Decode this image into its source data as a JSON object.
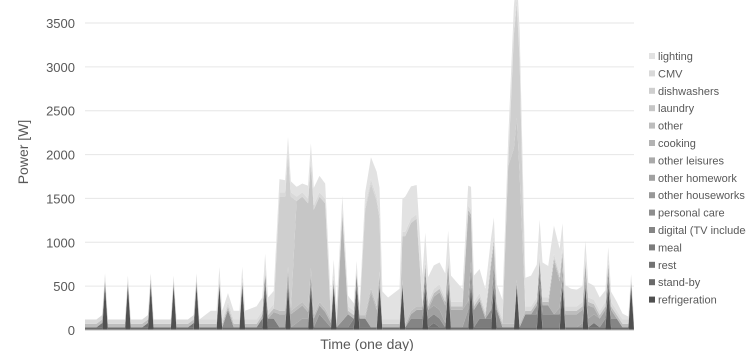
{
  "chart_data": {
    "type": "area",
    "stacked": true,
    "title": "",
    "xlabel": "Time (one day)",
    "ylabel": "Power [W]",
    "ylim": [
      0,
      3500
    ],
    "yticks": [
      0,
      500,
      1000,
      1500,
      2000,
      2500,
      3000,
      3500
    ],
    "grid": true,
    "legend_position": "right",
    "x": {
      "start": 0,
      "end": 96
    },
    "series": [
      {
        "name": "lighting",
        "color": "#e2e2e2",
        "values": [
          [
            20,
            0
          ],
          [
            22,
            100
          ],
          [
            28,
            100
          ],
          [
            30,
            150
          ],
          [
            34,
            150
          ],
          [
            38,
            100
          ],
          [
            40,
            200
          ],
          [
            44,
            150
          ],
          [
            46,
            120
          ],
          [
            48,
            50
          ],
          [
            50,
            250
          ],
          [
            52,
            320
          ],
          [
            53,
            250
          ],
          [
            56,
            400
          ],
          [
            59,
            300
          ],
          [
            62,
            250
          ],
          [
            64,
            300
          ],
          [
            66,
            150
          ],
          [
            68,
            300
          ],
          [
            72,
            200
          ],
          [
            76,
            300
          ],
          [
            80,
            400
          ],
          [
            85,
            200
          ],
          [
            90,
            150
          ],
          [
            93,
            100
          ],
          [
            96,
            0
          ]
        ]
      },
      {
        "name": "CMV",
        "color": "#d9d9d9",
        "values": [
          [
            0,
            50
          ],
          [
            96,
            50
          ]
        ]
      },
      {
        "name": "dishwashers",
        "color": "#cfcfcf",
        "values": [
          [
            33,
            0
          ],
          [
            34,
            1300
          ],
          [
            36,
            1300
          ],
          [
            37,
            0
          ],
          [
            48,
            0
          ],
          [
            49,
            1200
          ],
          [
            51,
            1200
          ],
          [
            52,
            0
          ],
          [
            74,
            0
          ],
          [
            75,
            1300
          ],
          [
            76,
            1300
          ],
          [
            77,
            0
          ]
        ]
      },
      {
        "name": "laundry",
        "color": "#c6c6c6",
        "values": [
          [
            36,
            0
          ],
          [
            37,
            1200
          ],
          [
            42,
            1200
          ],
          [
            43,
            0
          ],
          [
            55,
            0
          ],
          [
            56,
            1000
          ],
          [
            58,
            1000
          ],
          [
            59,
            0
          ],
          [
            73,
            0
          ],
          [
            74,
            1800
          ],
          [
            75,
            2000
          ],
          [
            76,
            1700
          ],
          [
            77,
            0
          ]
        ]
      },
      {
        "name": "other",
        "color": "#bdbdbd",
        "values": [
          [
            0,
            40
          ],
          [
            96,
            40
          ]
        ]
      },
      {
        "name": "cooking",
        "color": "#b3b3b3",
        "values": [
          [
            44,
            0
          ],
          [
            45,
            1200
          ],
          [
            46,
            0
          ],
          [
            49,
            0
          ],
          [
            50,
            400
          ],
          [
            52,
            0
          ],
          [
            66,
            0
          ],
          [
            67,
            1000
          ],
          [
            68,
            0
          ],
          [
            70,
            0
          ],
          [
            71,
            500
          ],
          [
            72,
            0
          ],
          [
            81,
            0
          ],
          [
            82,
            600
          ],
          [
            84,
            0
          ]
        ]
      },
      {
        "name": "other leisures",
        "color": "#aaaaaa",
        "values": [
          [
            32,
            0
          ],
          [
            34,
            150
          ],
          [
            38,
            150
          ],
          [
            40,
            0
          ],
          [
            60,
            0
          ],
          [
            62,
            200
          ],
          [
            66,
            200
          ],
          [
            68,
            0
          ],
          [
            82,
            0
          ],
          [
            84,
            150
          ],
          [
            88,
            150
          ],
          [
            90,
            0
          ]
        ]
      },
      {
        "name": "other homework",
        "color": "#a1a1a1",
        "values": [
          [
            36,
            0
          ],
          [
            38,
            100
          ],
          [
            42,
            100
          ],
          [
            44,
            0
          ],
          [
            56,
            0
          ],
          [
            58,
            100
          ],
          [
            62,
            100
          ],
          [
            64,
            0
          ],
          [
            86,
            0
          ],
          [
            88,
            100
          ],
          [
            92,
            100
          ],
          [
            93,
            0
          ]
        ]
      },
      {
        "name": "other houseworks",
        "color": "#989898",
        "values": [
          [
            66,
            0
          ],
          [
            67,
            200
          ],
          [
            69,
            200
          ],
          [
            70,
            0
          ],
          [
            78,
            0
          ],
          [
            79,
            100
          ],
          [
            81,
            100
          ],
          [
            82,
            0
          ]
        ]
      },
      {
        "name": "personal care",
        "color": "#8e8e8e",
        "values": [
          [
            24,
            0
          ],
          [
            25,
            200
          ],
          [
            26,
            0
          ],
          [
            40,
            0
          ],
          [
            41,
            150
          ],
          [
            43,
            0
          ],
          [
            44,
            0
          ],
          [
            46,
            150
          ],
          [
            47,
            0
          ],
          [
            70,
            0
          ],
          [
            72,
            200
          ],
          [
            73,
            0
          ]
        ]
      },
      {
        "name": "digital (TV included)",
        "color": "#858585",
        "values": [
          [
            56,
            0
          ],
          [
            57,
            100
          ],
          [
            62,
            100
          ],
          [
            63,
            0
          ],
          [
            76,
            0
          ],
          [
            77,
            150
          ],
          [
            83,
            150
          ],
          [
            84,
            0
          ],
          [
            90,
            0
          ],
          [
            91,
            100
          ],
          [
            93,
            100
          ],
          [
            94,
            0
          ]
        ]
      },
      {
        "name": "meal",
        "color": "#7c7c7c",
        "values": [
          [
            30,
            0
          ],
          [
            31,
            100
          ],
          [
            33,
            100
          ],
          [
            34,
            0
          ],
          [
            46,
            0
          ],
          [
            47,
            100
          ],
          [
            49,
            100
          ],
          [
            50,
            0
          ],
          [
            68,
            0
          ],
          [
            69,
            100
          ],
          [
            71,
            100
          ],
          [
            72,
            0
          ]
        ]
      },
      {
        "name": "rest",
        "color": "#737373",
        "values": [
          [
            0,
            0
          ],
          [
            2,
            0
          ],
          [
            3,
            50
          ],
          [
            4,
            0
          ],
          [
            10,
            0
          ],
          [
            11,
            50
          ],
          [
            12,
            0
          ],
          [
            18,
            0
          ],
          [
            19,
            50
          ],
          [
            20,
            0
          ],
          [
            60,
            0
          ],
          [
            61,
            50
          ],
          [
            62,
            0
          ],
          [
            88,
            0
          ],
          [
            89,
            50
          ],
          [
            90,
            0
          ]
        ]
      },
      {
        "name": "stand-by",
        "color": "#6a6a6a",
        "values": [
          [
            0,
            30
          ],
          [
            96,
            30
          ]
        ]
      },
      {
        "name": "refrigeration",
        "color": "#505050",
        "values": [
          [
            0,
            0
          ],
          [
            3,
            0
          ],
          [
            3.5,
            500
          ],
          [
            4,
            0
          ],
          [
            7,
            0
          ],
          [
            7.5,
            500
          ],
          [
            8,
            0
          ],
          [
            11,
            0
          ],
          [
            11.5,
            500
          ],
          [
            12,
            0
          ],
          [
            15,
            0
          ],
          [
            15.5,
            500
          ],
          [
            16,
            0
          ],
          [
            19,
            0
          ],
          [
            19.5,
            500
          ],
          [
            20,
            0
          ],
          [
            23,
            0
          ],
          [
            23.5,
            500
          ],
          [
            24,
            0
          ],
          [
            27,
            0
          ],
          [
            27.5,
            500
          ],
          [
            28,
            0
          ],
          [
            31,
            0
          ],
          [
            31.5,
            500
          ],
          [
            32,
            0
          ],
          [
            35,
            0
          ],
          [
            35.5,
            500
          ],
          [
            36,
            0
          ],
          [
            39,
            0
          ],
          [
            39.5,
            500
          ],
          [
            40,
            0
          ],
          [
            43,
            0
          ],
          [
            43.5,
            500
          ],
          [
            44,
            0
          ],
          [
            47,
            0
          ],
          [
            47.5,
            500
          ],
          [
            48,
            0
          ],
          [
            51,
            0
          ],
          [
            51.5,
            500
          ],
          [
            52,
            0
          ],
          [
            55,
            0
          ],
          [
            55.5,
            500
          ],
          [
            56,
            0
          ],
          [
            59,
            0
          ],
          [
            59.5,
            500
          ],
          [
            60,
            0
          ],
          [
            63,
            0
          ],
          [
            63.5,
            500
          ],
          [
            64,
            0
          ],
          [
            67,
            0
          ],
          [
            67.5,
            500
          ],
          [
            68,
            0
          ],
          [
            71,
            0
          ],
          [
            71.5,
            500
          ],
          [
            72,
            0
          ],
          [
            75,
            0
          ],
          [
            75.5,
            500
          ],
          [
            76,
            0
          ],
          [
            79,
            0
          ],
          [
            79.5,
            500
          ],
          [
            80,
            0
          ],
          [
            83,
            0
          ],
          [
            83.5,
            500
          ],
          [
            84,
            0
          ],
          [
            87,
            0
          ],
          [
            87.5,
            500
          ],
          [
            88,
            0
          ],
          [
            91,
            0
          ],
          [
            91.5,
            500
          ],
          [
            92,
            0
          ],
          [
            95,
            0
          ],
          [
            95.5,
            500
          ],
          [
            96,
            0
          ]
        ]
      }
    ]
  }
}
